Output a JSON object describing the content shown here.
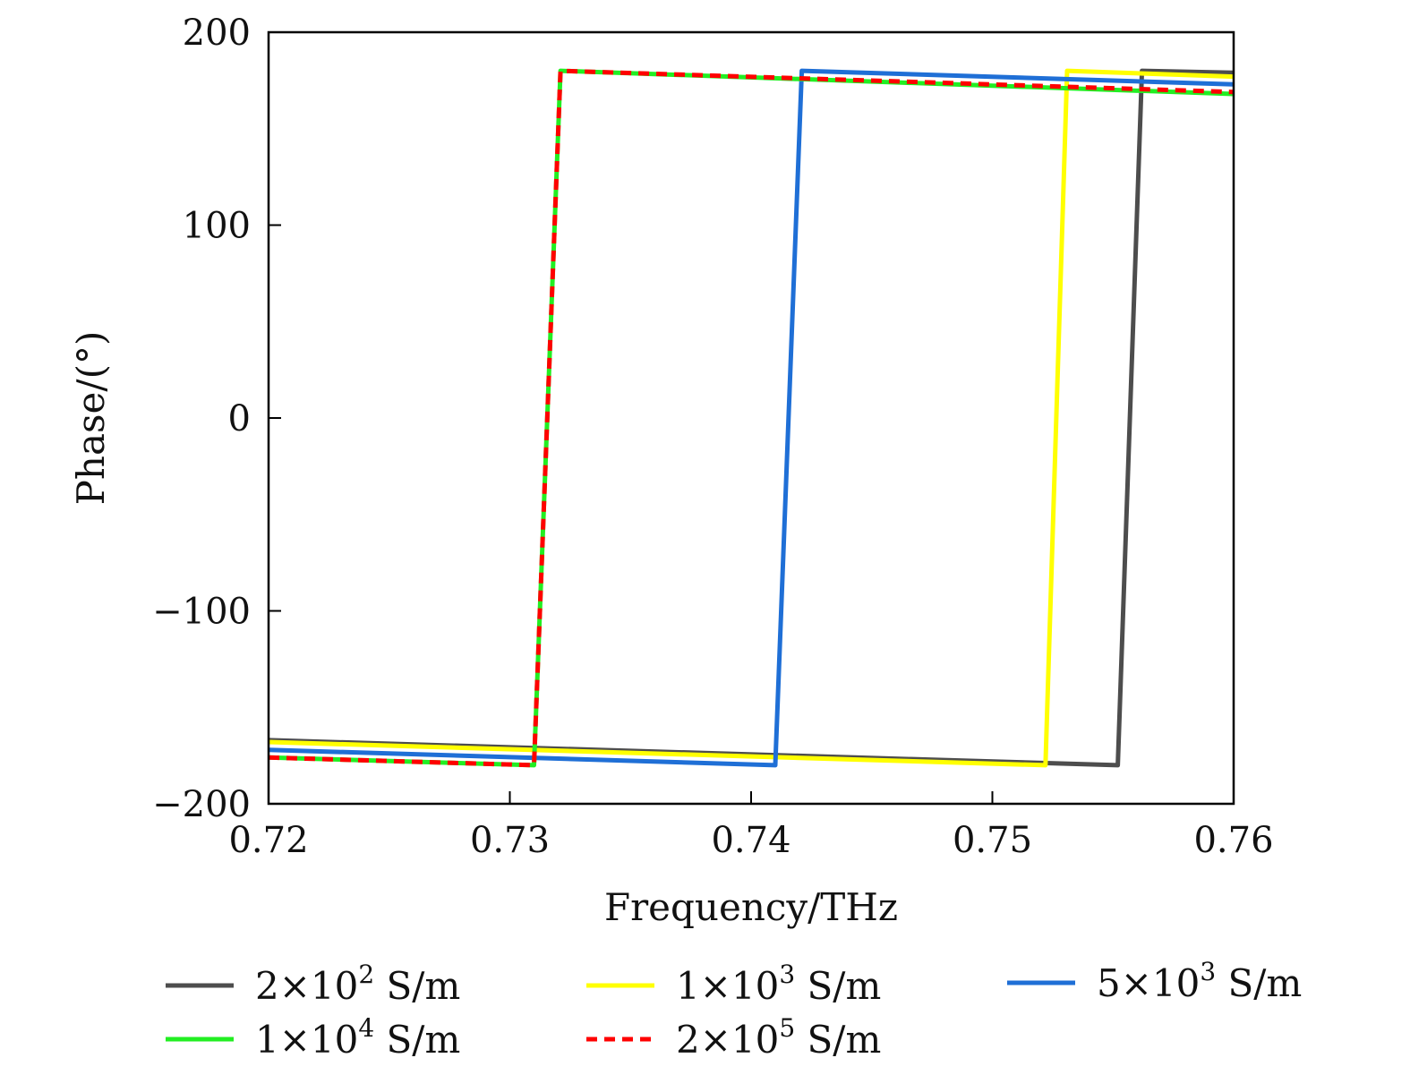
{
  "chart_data": {
    "type": "line",
    "title": "",
    "xlabel": "Frequency/THz",
    "ylabel": "Phase/(°)",
    "xlim": [
      0.72,
      0.76
    ],
    "ylim": [
      -200,
      200
    ],
    "xticks": [
      0.72,
      0.73,
      0.74,
      0.75,
      0.76
    ],
    "xtick_labels": [
      "0.72",
      "0.73",
      "0.74",
      "0.75",
      "0.76"
    ],
    "yticks": [
      200,
      100,
      0,
      -100,
      -200
    ],
    "ytick_labels": [
      "200",
      "100",
      "0",
      "−100",
      "−200"
    ],
    "grid": false,
    "legend_position": "bottom",
    "series": [
      {
        "name": "2×10² S/m",
        "base": "2×10",
        "exp": "2",
        "unit": " S/m",
        "color": "#4d4d4d",
        "dash": "solid",
        "x": [
          0.72,
          0.7552,
          0.7562,
          0.76
        ],
        "y": [
          -167,
          -180,
          180,
          179
        ]
      },
      {
        "name": "1×10³ S/m",
        "base": "1×10",
        "exp": "3",
        "unit": " S/m",
        "color": "#ffff00",
        "dash": "solid",
        "x": [
          0.72,
          0.7522,
          0.7531,
          0.76
        ],
        "y": [
          -168,
          -180,
          180,
          177
        ]
      },
      {
        "name": "5×10³ S/m",
        "base": "5×10",
        "exp": "3",
        "unit": " S/m",
        "color": "#1f6fd6",
        "dash": "solid",
        "x": [
          0.72,
          0.741,
          0.7421,
          0.76
        ],
        "y": [
          -172,
          -180,
          180,
          173
        ]
      },
      {
        "name": "1×10⁴ S/m",
        "base": "1×10",
        "exp": "4",
        "unit": " S/m",
        "color": "#22ee22",
        "dash": "solid",
        "x": [
          0.72,
          0.731,
          0.7321,
          0.76
        ],
        "y": [
          -176,
          -180,
          180,
          168
        ]
      },
      {
        "name": "2×10⁵ S/m",
        "base": "2×10",
        "exp": "5",
        "unit": " S/m",
        "color": "#ff0000",
        "dash": "dashed",
        "x": [
          0.72,
          0.731,
          0.7321,
          0.76
        ],
        "y": [
          -176,
          -180,
          180,
          169
        ]
      }
    ]
  }
}
